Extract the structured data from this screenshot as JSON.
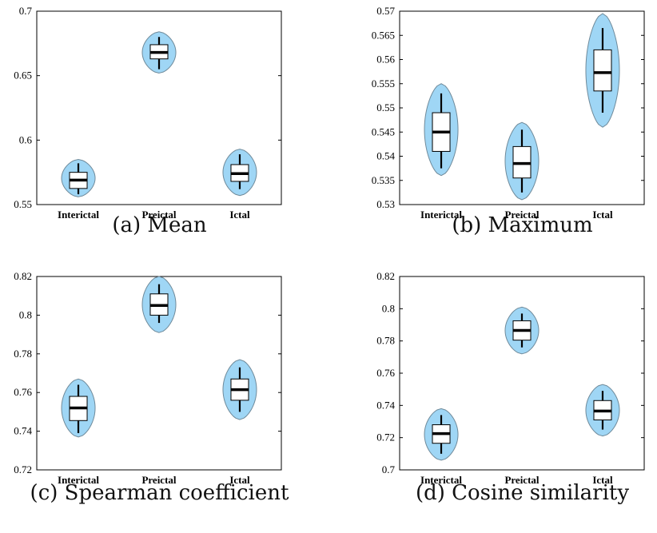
{
  "chart_data": [
    {
      "type": "violin",
      "caption": "(a) Mean",
      "categories": [
        "Interictal",
        "Preictal",
        "Ictal"
      ],
      "ylim": [
        0.55,
        0.7
      ],
      "yticks": [
        "0.55",
        "0.6",
        "0.65",
        "0.7"
      ],
      "yticks_val": [
        0.55,
        0.6,
        0.65,
        0.7
      ],
      "violins": [
        {
          "min": 0.556,
          "max": 0.585,
          "whisker_low": 0.558,
          "whisker_high": 0.582,
          "q1": 0.5625,
          "median": 0.569,
          "q3": 0.575
        },
        {
          "min": 0.652,
          "max": 0.684,
          "whisker_low": 0.655,
          "whisker_high": 0.68,
          "q1": 0.663,
          "median": 0.668,
          "q3": 0.674
        },
        {
          "min": 0.557,
          "max": 0.593,
          "whisker_low": 0.562,
          "whisker_high": 0.589,
          "q1": 0.568,
          "median": 0.574,
          "q3": 0.581
        }
      ]
    },
    {
      "type": "violin",
      "caption": "(b) Maximum",
      "categories": [
        "Interictal",
        "Preictal",
        "Ictal"
      ],
      "ylim": [
        0.53,
        0.57
      ],
      "yticks": [
        "0.53",
        "0.535",
        "0.54",
        "0.545",
        "0.55",
        "0.555",
        "0.56",
        "0.565",
        "0.57"
      ],
      "yticks_val": [
        0.53,
        0.535,
        0.54,
        0.545,
        0.55,
        0.555,
        0.56,
        0.565,
        0.57
      ],
      "violins": [
        {
          "min": 0.536,
          "max": 0.555,
          "whisker_low": 0.5375,
          "whisker_high": 0.553,
          "q1": 0.541,
          "median": 0.545,
          "q3": 0.549
        },
        {
          "min": 0.531,
          "max": 0.547,
          "whisker_low": 0.5325,
          "whisker_high": 0.5455,
          "q1": 0.5355,
          "median": 0.5385,
          "q3": 0.542
        },
        {
          "min": 0.546,
          "max": 0.5695,
          "whisker_low": 0.549,
          "whisker_high": 0.5665,
          "q1": 0.5535,
          "median": 0.5573,
          "q3": 0.562
        }
      ]
    },
    {
      "type": "violin",
      "caption": "(c) Spearman coefficient",
      "categories": [
        "Interictal",
        "Preictal",
        "Ictal"
      ],
      "ylim": [
        0.72,
        0.82
      ],
      "yticks": [
        "0.72",
        "0.74",
        "0.76",
        "0.78",
        "0.8",
        "0.82"
      ],
      "yticks_val": [
        0.72,
        0.74,
        0.76,
        0.78,
        0.8,
        0.82
      ],
      "violins": [
        {
          "min": 0.737,
          "max": 0.767,
          "whisker_low": 0.739,
          "whisker_high": 0.764,
          "q1": 0.7455,
          "median": 0.752,
          "q3": 0.758
        },
        {
          "min": 0.791,
          "max": 0.82,
          "whisker_low": 0.796,
          "whisker_high": 0.816,
          "q1": 0.8,
          "median": 0.805,
          "q3": 0.811
        },
        {
          "min": 0.746,
          "max": 0.777,
          "whisker_low": 0.75,
          "whisker_high": 0.773,
          "q1": 0.756,
          "median": 0.7615,
          "q3": 0.767
        }
      ]
    },
    {
      "type": "violin",
      "caption": "(d) Cosine similarity",
      "categories": [
        "Interictal",
        "Preictal",
        "Ictal"
      ],
      "ylim": [
        0.7,
        0.82
      ],
      "yticks": [
        "0.7",
        "0.72",
        "0.74",
        "0.76",
        "0.78",
        "0.8",
        "0.82"
      ],
      "yticks_val": [
        0.7,
        0.72,
        0.74,
        0.76,
        0.78,
        0.8,
        0.82
      ],
      "violins": [
        {
          "min": 0.706,
          "max": 0.738,
          "whisker_low": 0.71,
          "whisker_high": 0.734,
          "q1": 0.7165,
          "median": 0.7225,
          "q3": 0.728
        },
        {
          "min": 0.772,
          "max": 0.801,
          "whisker_low": 0.776,
          "whisker_high": 0.797,
          "q1": 0.7805,
          "median": 0.7865,
          "q3": 0.7925
        },
        {
          "min": 0.721,
          "max": 0.753,
          "whisker_low": 0.725,
          "whisker_high": 0.749,
          "q1": 0.731,
          "median": 0.7365,
          "q3": 0.743
        }
      ]
    }
  ],
  "colors": {
    "violin_fill": "#9fd6f5",
    "violin_edge": "#6f8a9a",
    "box_fill": "#ffffff",
    "line": "#000000"
  }
}
